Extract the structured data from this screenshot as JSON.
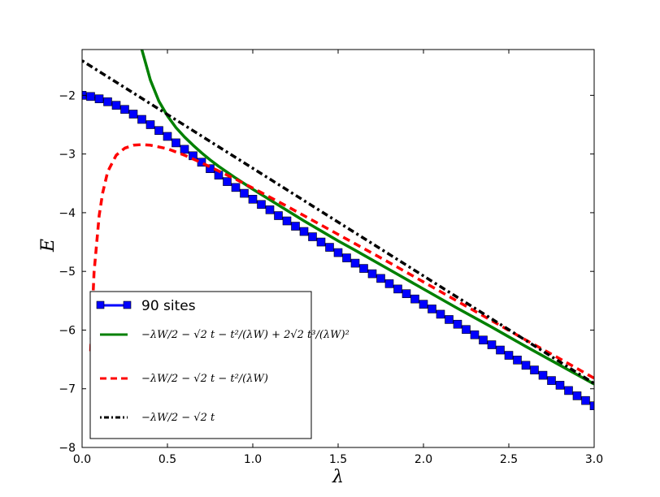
{
  "chart_data": {
    "type": "line",
    "xlabel": "λ",
    "ylabel": "E",
    "xlim": [
      0.0,
      3.0
    ],
    "ylim": [
      -8.0,
      -1.22
    ],
    "x_ticks": [
      0.0,
      0.5,
      1.0,
      1.5,
      2.0,
      2.5,
      3.0
    ],
    "x_tick_labels": [
      "0.0",
      "0.5",
      "1.0",
      "1.5",
      "2.0",
      "2.5",
      "3.0"
    ],
    "y_ticks": [
      -8,
      -7,
      -6,
      -5,
      -4,
      -3,
      -2
    ],
    "y_tick_labels": [
      "−8",
      "−7",
      "−6",
      "−5",
      "−4",
      "−3",
      "−2"
    ],
    "grid": false,
    "legend_position": "lower-left",
    "series": [
      {
        "name": "90 sites",
        "color": "#0000ff",
        "style": "solid-square-markers",
        "x": [
          0.0,
          0.05,
          0.1,
          0.15,
          0.2,
          0.25,
          0.3,
          0.35,
          0.4,
          0.45,
          0.5,
          0.55,
          0.6,
          0.65,
          0.7,
          0.75,
          0.8,
          0.85,
          0.9,
          0.95,
          1.0,
          1.05,
          1.1,
          1.15,
          1.2,
          1.25,
          1.3,
          1.35,
          1.4,
          1.45,
          1.5,
          1.55,
          1.6,
          1.65,
          1.7,
          1.75,
          1.8,
          1.85,
          1.9,
          1.95,
          2.0,
          2.05,
          2.1,
          2.15,
          2.2,
          2.25,
          2.3,
          2.35,
          2.4,
          2.45,
          2.5,
          2.55,
          2.6,
          2.65,
          2.7,
          2.75,
          2.8,
          2.85,
          2.9,
          2.95,
          3.0
        ],
        "y": [
          -2.0,
          -2.02,
          -2.06,
          -2.11,
          -2.17,
          -2.24,
          -2.32,
          -2.41,
          -2.5,
          -2.6,
          -2.7,
          -2.81,
          -2.92,
          -3.03,
          -3.14,
          -3.25,
          -3.36,
          -3.47,
          -3.57,
          -3.67,
          -3.77,
          -3.86,
          -3.95,
          -4.05,
          -4.14,
          -4.23,
          -4.32,
          -4.41,
          -4.5,
          -4.59,
          -4.68,
          -4.77,
          -4.86,
          -4.95,
          -5.04,
          -5.12,
          -5.21,
          -5.3,
          -5.38,
          -5.47,
          -5.56,
          -5.64,
          -5.73,
          -5.82,
          -5.9,
          -5.99,
          -6.08,
          -6.17,
          -6.25,
          -6.34,
          -6.43,
          -6.51,
          -6.6,
          -6.68,
          -6.77,
          -6.86,
          -6.94,
          -7.03,
          -7.12,
          -7.2,
          -7.29
        ]
      },
      {
        "name": "−λW/2 − √2 t − t²/(λW) + 2√2 t³/(λW)²",
        "color": "#008000",
        "style": "solid",
        "x": [
          0.35,
          0.4,
          0.45,
          0.5,
          0.55,
          0.6,
          0.65,
          0.7,
          0.75,
          0.8,
          0.9,
          1.0,
          1.1,
          1.2,
          1.3,
          1.4,
          1.5,
          1.6,
          1.8,
          2.0,
          2.2,
          2.4,
          2.6,
          2.8,
          3.0
        ],
        "y": [
          -1.22,
          -1.74,
          -2.1,
          -2.35,
          -2.55,
          -2.71,
          -2.85,
          -2.98,
          -3.1,
          -3.21,
          -3.41,
          -3.6,
          -3.78,
          -3.96,
          -4.14,
          -4.31,
          -4.48,
          -4.64,
          -4.97,
          -5.3,
          -5.63,
          -5.95,
          -6.28,
          -6.6,
          -6.92
        ]
      },
      {
        "name": "−λW/2 − √2 t − t²/(λW)",
        "color": "#ff0000",
        "style": "dashed",
        "x": [
          0.05,
          0.07,
          0.1,
          0.12,
          0.15,
          0.2,
          0.25,
          0.3,
          0.35,
          0.4,
          0.5,
          0.6,
          0.7,
          0.8,
          0.9,
          1.0,
          1.2,
          1.4,
          1.6,
          1.8,
          2.0,
          2.2,
          2.4,
          2.6,
          2.8,
          3.0
        ],
        "y": [
          -6.36,
          -5.02,
          -4.05,
          -3.67,
          -3.3,
          -3.02,
          -2.9,
          -2.85,
          -2.84,
          -2.85,
          -2.91,
          -3.02,
          -3.15,
          -3.29,
          -3.43,
          -3.58,
          -3.89,
          -4.21,
          -4.53,
          -4.85,
          -5.18,
          -5.51,
          -5.84,
          -6.17,
          -6.49,
          -6.82
        ]
      },
      {
        "name": "−λW/2 − √2 t",
        "color": "#000000",
        "style": "dash-dot",
        "x": [
          0.0,
          3.0
        ],
        "y": [
          -1.41,
          -6.91
        ]
      }
    ],
    "legend": {
      "entries": [
        {
          "label": "90 sites",
          "style": "solid-square-markers",
          "color": "#0000ff"
        },
        {
          "label": "−λW/2 − √2 t − t²/(λW) + 2√2 t³/(λW)²",
          "style": "solid",
          "color": "#008000"
        },
        {
          "label": "−λW/2 − √2 t − t²/(λW)",
          "style": "dashed",
          "color": "#ff0000"
        },
        {
          "label": "−λW/2 − √2 t",
          "style": "dash-dot",
          "color": "#000000"
        }
      ]
    }
  }
}
